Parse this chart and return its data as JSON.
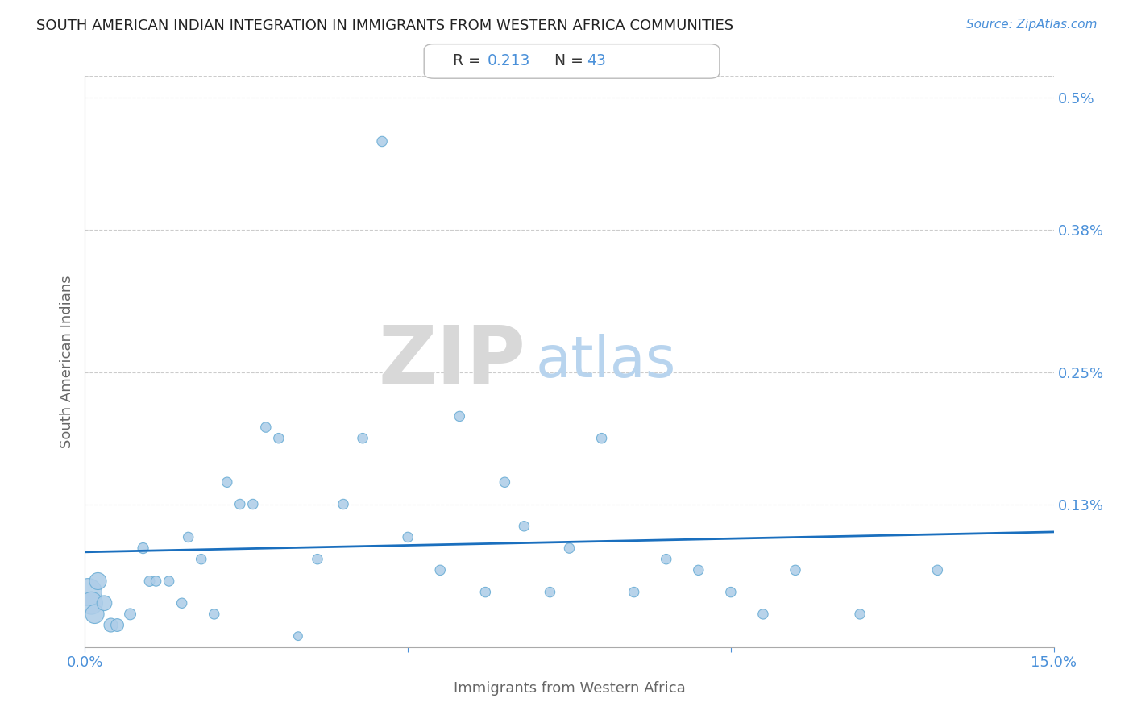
{
  "title": "SOUTH AMERICAN INDIAN INTEGRATION IN IMMIGRANTS FROM WESTERN AFRICA COMMUNITIES",
  "source": "Source: ZipAtlas.com",
  "xlabel": "Immigrants from Western Africa",
  "ylabel": "South American Indians",
  "R": 0.213,
  "N": 43,
  "xlim": [
    0.0,
    0.15
  ],
  "ylim": [
    0.0,
    0.0052
  ],
  "xtick_positions": [
    0.0,
    0.05,
    0.1,
    0.15
  ],
  "xtick_labels": [
    "0.0%",
    "",
    "",
    "15.0%"
  ],
  "ytick_positions": [
    0.0013,
    0.0025,
    0.0038,
    0.005
  ],
  "ytick_labels": [
    "0.13%",
    "0.25%",
    "0.38%",
    "0.5%"
  ],
  "scatter_color": "#aecde8",
  "scatter_edge_color": "#6aadd5",
  "line_color": "#1a6fbe",
  "wm_zip_color": "#d8d8d8",
  "wm_atlas_color": "#b8d4ee",
  "title_color": "#222222",
  "axis_label_color": "#666666",
  "tick_label_color": "#4a90d9",
  "rn_text_color": "#333333",
  "grid_color": "#cccccc",
  "bg_color": "#ffffff",
  "x_data": [
    0.0005,
    0.001,
    0.0015,
    0.002,
    0.003,
    0.004,
    0.005,
    0.007,
    0.009,
    0.01,
    0.011,
    0.013,
    0.015,
    0.016,
    0.018,
    0.02,
    0.022,
    0.024,
    0.026,
    0.028,
    0.03,
    0.033,
    0.036,
    0.04,
    0.043,
    0.046,
    0.05,
    0.055,
    0.058,
    0.062,
    0.065,
    0.068,
    0.072,
    0.075,
    0.08,
    0.085,
    0.09,
    0.095,
    0.1,
    0.105,
    0.11,
    0.12,
    0.132
  ],
  "y_data": [
    0.0005,
    0.0004,
    0.0003,
    0.0006,
    0.0004,
    0.0002,
    0.0002,
    0.0003,
    0.0009,
    0.0006,
    0.0006,
    0.0006,
    0.0004,
    0.001,
    0.0008,
    0.0003,
    0.0015,
    0.0013,
    0.0013,
    0.002,
    0.0019,
    0.0001,
    0.0008,
    0.0013,
    0.0019,
    0.0046,
    0.001,
    0.0007,
    0.0021,
    0.0005,
    0.0015,
    0.0011,
    0.0005,
    0.0009,
    0.0019,
    0.0005,
    0.0008,
    0.0007,
    0.0005,
    0.0003,
    0.0007,
    0.0003,
    0.0007
  ],
  "marker_sizes": [
    600,
    400,
    280,
    230,
    180,
    150,
    130,
    100,
    90,
    85,
    80,
    80,
    80,
    80,
    80,
    80,
    80,
    80,
    80,
    80,
    80,
    60,
    80,
    80,
    80,
    80,
    80,
    80,
    80,
    80,
    80,
    80,
    80,
    80,
    80,
    80,
    80,
    80,
    80,
    80,
    80,
    80,
    80
  ]
}
